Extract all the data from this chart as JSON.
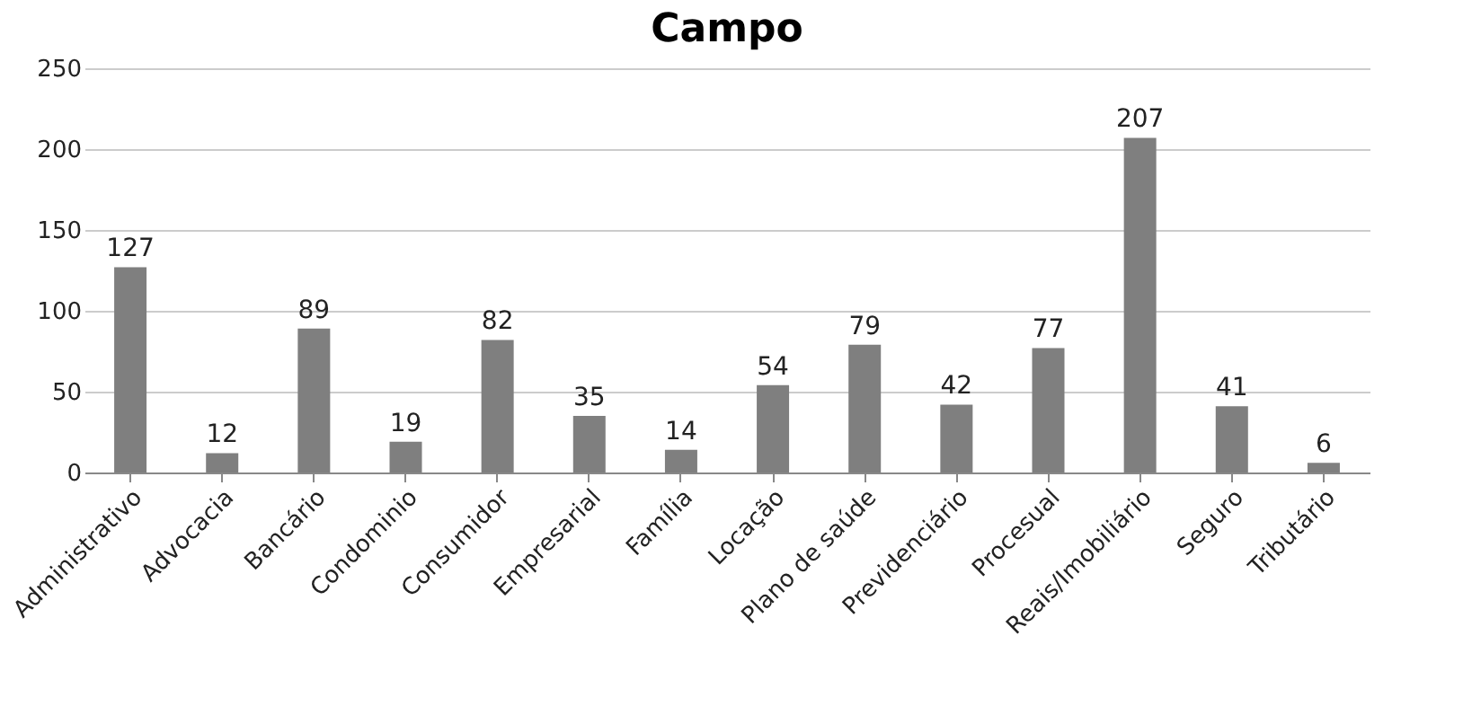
{
  "chart_data": {
    "type": "bar",
    "title": "Campo",
    "categories": [
      "Administrativo",
      "Advocacia",
      "Bancário",
      "Condominio",
      "Consumidor",
      "Empresarial",
      "Família",
      "Locação",
      "Plano de saúde",
      "Previdenciário",
      "Procesual",
      "Reais/Imobiliário",
      "Seguro",
      "Tributário"
    ],
    "values": [
      127,
      12,
      89,
      19,
      82,
      35,
      14,
      54,
      79,
      42,
      77,
      207,
      41,
      6
    ],
    "color": "#7f7f7f",
    "ylim": [
      0,
      250
    ],
    "yticks": [
      0,
      50,
      100,
      150,
      200,
      250
    ],
    "grid": "y",
    "data_labels": true
  }
}
